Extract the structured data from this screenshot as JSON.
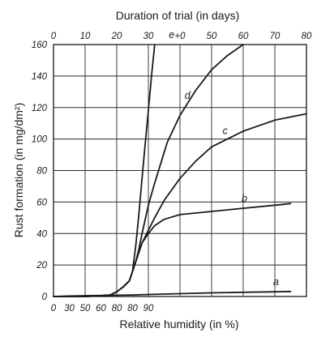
{
  "chart_data": {
    "type": "line",
    "title": "",
    "xlabel": "Relative humidity (in %)",
    "x2label": "Duration of trial (in days)",
    "ylabel": "Rust formation (in mg/dm²)",
    "ylim": [
      0,
      160
    ],
    "yticks": [
      "0",
      "20",
      "40",
      "60",
      "80",
      "100",
      "120",
      "140",
      "160"
    ],
    "xticks": [
      "0",
      "30",
      "50",
      "60",
      "80",
      "80",
      "90"
    ],
    "x2ticks": [
      "0",
      "10",
      "20",
      "30",
      "+0",
      "50",
      "60",
      "70",
      "80"
    ],
    "x2lim": [
      0,
      80
    ],
    "x_unit": "days",
    "grid": true,
    "series": [
      {
        "name": "a",
        "x": [
          0,
          5,
          10,
          15,
          20,
          25,
          30,
          40,
          50,
          60,
          70,
          75
        ],
        "y": [
          0,
          0.3,
          0.5,
          0.6,
          0.8,
          1,
          1.3,
          1.8,
          2.3,
          2.7,
          3,
          3.2
        ]
      },
      {
        "name": "b",
        "x": [
          0,
          10,
          15,
          18,
          20,
          22,
          24,
          25,
          26,
          27,
          28,
          30,
          32,
          35,
          40,
          50,
          60,
          70,
          75
        ],
        "y": [
          0,
          0,
          0.5,
          1,
          3,
          6,
          10,
          16,
          22,
          28,
          34,
          40,
          45,
          49,
          52,
          54,
          56,
          58,
          59
        ]
      },
      {
        "name": "c",
        "x": [
          0,
          10,
          15,
          18,
          20,
          22,
          24,
          25,
          26,
          27,
          28,
          30,
          32,
          35,
          40,
          45,
          50,
          60,
          70,
          80
        ],
        "y": [
          0,
          0,
          0.5,
          1,
          3,
          6,
          10,
          16,
          22,
          28,
          34,
          42,
          50,
          61,
          75,
          86,
          95,
          105,
          112,
          116
        ]
      },
      {
        "name": "d",
        "x": [
          0,
          10,
          15,
          18,
          20,
          22,
          24,
          25,
          26,
          27,
          28,
          30,
          32,
          34,
          36,
          40,
          45,
          50,
          55,
          60
        ],
        "y": [
          0,
          0,
          0.5,
          1,
          3,
          6,
          10,
          16,
          22,
          30,
          40,
          58,
          72,
          85,
          98,
          115,
          131,
          144,
          153,
          160
        ]
      },
      {
        "name": "e",
        "x": [
          0,
          10,
          15,
          18,
          20,
          22,
          24,
          25,
          26,
          27,
          28,
          29,
          30,
          31,
          32
        ],
        "y": [
          0,
          0,
          0.5,
          1,
          3,
          6,
          10,
          16,
          32,
          52,
          75,
          97,
          118,
          140,
          160
        ]
      }
    ]
  }
}
